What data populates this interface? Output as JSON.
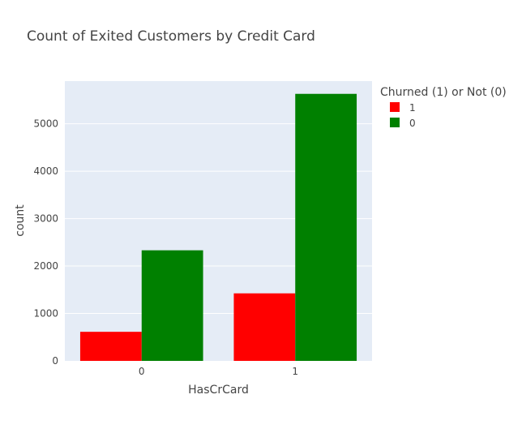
{
  "chart_data": {
    "type": "bar",
    "title": "Count of Exited Customers by Credit Card",
    "xlabel": "HasCrCard",
    "ylabel": "count",
    "categories": [
      "0",
      "1"
    ],
    "ylim": [
      0,
      5900
    ],
    "yticks": [
      0,
      1000,
      2000,
      3000,
      4000,
      5000
    ],
    "ytick_labels": [
      "0",
      "1000",
      "2000",
      "3000",
      "4000",
      "5000"
    ],
    "grid": true,
    "legend": {
      "title": "Churned (1) or Not (0)",
      "position": "top-right"
    },
    "series": [
      {
        "name": "1",
        "color": "#ff0000",
        "values": [
          613,
          1424
        ]
      },
      {
        "name": "0",
        "color": "#008000",
        "values": [
          2332,
          5631
        ]
      }
    ]
  }
}
